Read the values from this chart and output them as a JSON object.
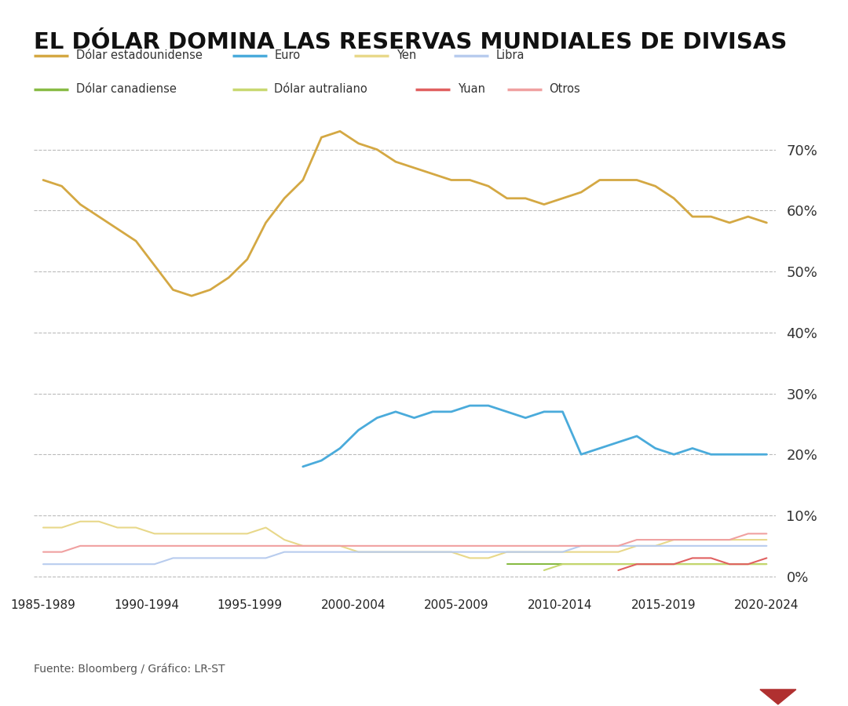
{
  "title": "EL DÓLAR DOMINA LAS RESERVAS MUNDIALES DE DIVISAS",
  "title_fontsize": 21,
  "source_text": "Fuente: Bloomberg / Gráfico: LR-ST",
  "x_labels": [
    "1985-1989",
    "1990-1994",
    "1995-1999",
    "2000-2004",
    "2005-2009",
    "2010-2014",
    "2015-2019",
    "2020-2024"
  ],
  "series": {
    "Dólar estadounidense": {
      "color": "#D4A843",
      "linewidth": 2.0
    },
    "Euro": {
      "color": "#4AABDB",
      "linewidth": 2.0
    },
    "Yen": {
      "color": "#E8D88A",
      "linewidth": 1.5
    },
    "Libra": {
      "color": "#B8CCEE",
      "linewidth": 1.5
    },
    "Dólar canadiense": {
      "color": "#88BB44",
      "linewidth": 1.5
    },
    "Dólar autraliano": {
      "color": "#C8D870",
      "linewidth": 1.5
    },
    "Yuan": {
      "color": "#E06060",
      "linewidth": 1.5
    },
    "Otros": {
      "color": "#F0A0A0",
      "linewidth": 1.5
    }
  },
  "legend_order": [
    "Dólar estadounidense",
    "Euro",
    "Yen",
    "Libra",
    "Dólar canadiense",
    "Dólar autraliano",
    "Yuan",
    "Otros"
  ],
  "yticks": [
    0,
    10,
    20,
    30,
    40,
    50,
    60,
    70
  ],
  "ylim": [
    -1,
    76
  ],
  "background_color": "#ffffff",
  "grid_color": "#bbbbbb",
  "lr_box_color": "#b03030"
}
